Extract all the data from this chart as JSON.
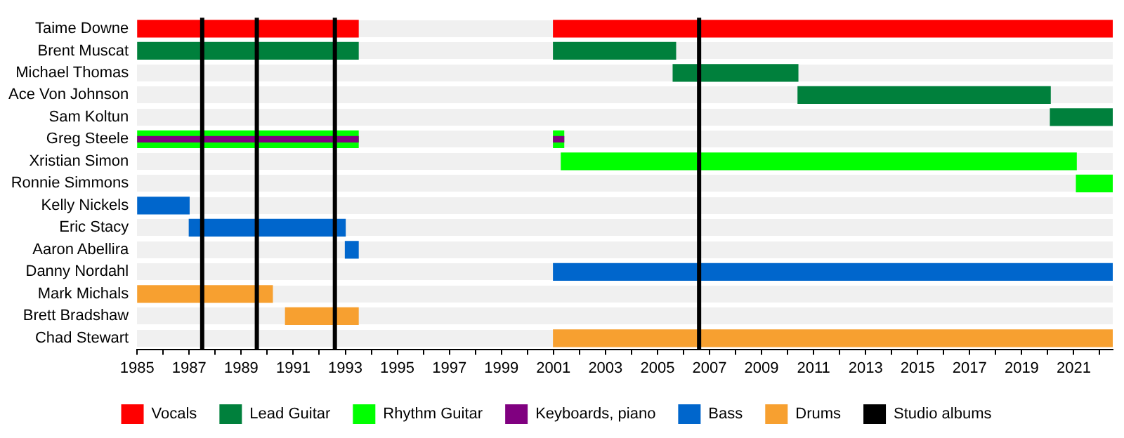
{
  "chart_data": {
    "type": "bar",
    "orientation": "horizontal",
    "categories": [
      "Taime Downe",
      "Brent Muscat",
      "Michael Thomas",
      "Ace Von Johnson",
      "Sam Koltun",
      "Greg Steele",
      "Xristian Simon",
      "Ronnie Simmons",
      "Kelly Nickels",
      "Eric Stacy",
      "Aaron Abellira",
      "Danny Nordahl",
      "Mark Michals",
      "Brett Bradshaw",
      "Chad Stewart"
    ],
    "series": [
      {
        "name": "Vocals",
        "color": "#ff0000",
        "base": [
          1985,
          null,
          null,
          null,
          null,
          null,
          null,
          null,
          null,
          null,
          null,
          null,
          null,
          null,
          null
        ],
        "values": [
          8.5,
          null,
          null,
          null,
          null,
          null,
          null,
          null,
          null,
          null,
          null,
          null,
          null,
          null,
          null
        ]
      },
      {
        "color": "#ff0000",
        "base": [
          2001,
          null,
          null,
          null,
          null,
          null,
          null,
          null,
          null,
          null,
          null,
          null,
          null,
          null,
          null
        ],
        "values": [
          21.5,
          null,
          null,
          null,
          null,
          null,
          null,
          null,
          null,
          null,
          null,
          null,
          null,
          null,
          null
        ]
      },
      {
        "name": "Lead Guitar",
        "color": "#00803c",
        "base": [
          null,
          1985,
          null,
          null,
          null,
          null,
          null,
          null,
          null,
          null,
          null,
          null,
          null,
          null,
          null
        ],
        "values": [
          null,
          8.5,
          null,
          null,
          null,
          null,
          null,
          null,
          null,
          null,
          null,
          null,
          null,
          null,
          null
        ]
      },
      {
        "color": "#00803c",
        "base": [
          null,
          2001,
          2005.6,
          2010.4,
          2020.1,
          null,
          null,
          null,
          null,
          null,
          null,
          null,
          null,
          null,
          null
        ],
        "values": [
          null,
          4.7,
          4.8,
          9.7,
          2.4,
          null,
          null,
          null,
          null,
          null,
          null,
          null,
          null,
          null,
          null
        ]
      },
      {
        "name": "Rhythm Guitar",
        "color": "#00ff00",
        "base": [
          null,
          null,
          null,
          null,
          null,
          1985,
          2001.3,
          2021.1,
          null,
          null,
          null,
          null,
          null,
          null,
          null
        ],
        "values": [
          null,
          null,
          null,
          null,
          null,
          8.5,
          19.8,
          1.4,
          null,
          null,
          null,
          null,
          null,
          null,
          null
        ]
      },
      {
        "color": "#00ff00",
        "base": [
          null,
          null,
          null,
          null,
          null,
          2001,
          null,
          null,
          null,
          null,
          null,
          null,
          null,
          null,
          null
        ],
        "values": [
          null,
          null,
          null,
          null,
          null,
          0.4,
          null,
          null,
          null,
          null,
          null,
          null,
          null,
          null,
          null
        ]
      },
      {
        "name": "Keyboards, piano",
        "color": "#800080",
        "base": [
          null,
          null,
          null,
          null,
          null,
          1985,
          null,
          null,
          null,
          null,
          null,
          null,
          null,
          null,
          null
        ],
        "values": [
          null,
          null,
          null,
          null,
          null,
          8.5,
          null,
          null,
          null,
          null,
          null,
          null,
          null,
          null,
          null
        ]
      },
      {
        "color": "#800080",
        "base": [
          null,
          null,
          null,
          null,
          null,
          2001,
          null,
          null,
          null,
          null,
          null,
          null,
          null,
          null,
          null
        ],
        "values": [
          null,
          null,
          null,
          null,
          null,
          0.4,
          null,
          null,
          null,
          null,
          null,
          null,
          null,
          null,
          null
        ]
      },
      {
        "name": "Bass",
        "color": "#0066cc",
        "base": [
          null,
          null,
          null,
          null,
          null,
          null,
          null,
          null,
          1985,
          1987,
          1993,
          2001,
          null,
          null,
          null
        ],
        "values": [
          null,
          null,
          null,
          null,
          null,
          null,
          null,
          null,
          2,
          6,
          0.5,
          21.5,
          null,
          null,
          null
        ]
      },
      {
        "name": "Drums",
        "color": "#f7a030",
        "base": [
          null,
          null,
          null,
          null,
          null,
          null,
          null,
          null,
          null,
          null,
          null,
          null,
          1985,
          1990.7,
          2001
        ],
        "values": [
          null,
          null,
          null,
          null,
          null,
          null,
          null,
          null,
          null,
          null,
          null,
          null,
          5.2,
          2.8,
          21.5
        ]
      }
    ],
    "xlim": [
      1985,
      2022.5
    ],
    "xticks": [
      1985,
      {
        "value": 1986,
        "label": null
      },
      1987,
      {
        "value": 1988,
        "label": null
      },
      1989,
      {
        "value": 1990,
        "label": null
      },
      1991,
      {
        "value": 1992,
        "label": null
      },
      1993,
      {
        "value": 1994,
        "label": null
      },
      1995,
      {
        "value": 1996,
        "label": null
      },
      1997,
      {
        "value": 1998,
        "label": null
      },
      1999,
      {
        "value": 2000,
        "label": null
      },
      2001,
      {
        "value": 2002,
        "label": null
      },
      2003,
      {
        "value": 2004,
        "label": null
      },
      2005,
      {
        "value": 2006,
        "label": null
      },
      2007,
      {
        "value": 2008,
        "label": null
      },
      2009,
      {
        "value": 2010,
        "label": null
      },
      2011,
      {
        "value": 2012,
        "label": null
      },
      2013,
      {
        "value": 2014,
        "label": null
      },
      2015,
      {
        "value": 2016,
        "label": null
      },
      2017,
      {
        "value": 2018,
        "label": null
      },
      2019,
      {
        "value": 2020,
        "label": null
      },
      2021,
      {
        "value": 2022,
        "label": null
      }
    ],
    "ref_lines": [
      {
        "axis": "x",
        "value": 1987.5,
        "label": "Studio albums",
        "color": "#000000"
      },
      {
        "axis": "x",
        "value": 1989.6,
        "color": "#000000"
      },
      {
        "axis": "x",
        "value": 1992.6,
        "color": "#000000"
      },
      {
        "axis": "x",
        "value": 2006.6,
        "color": "#000000"
      }
    ],
    "grid": "y",
    "legend": "bottom"
  }
}
